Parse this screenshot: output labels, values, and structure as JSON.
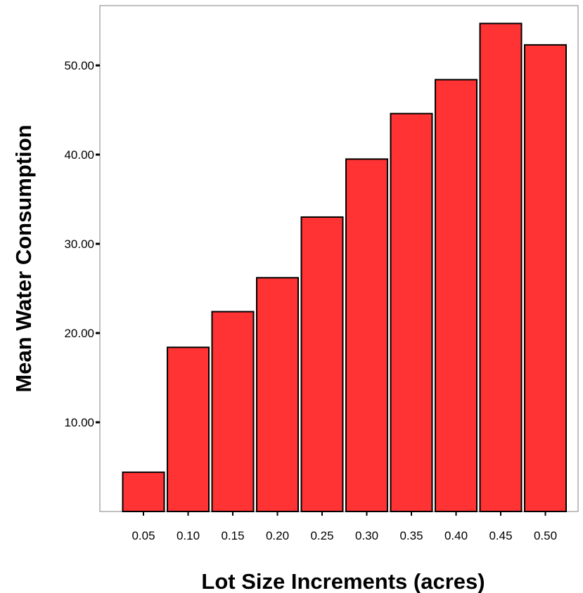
{
  "chart_data": {
    "type": "bar",
    "title": "",
    "xlabel": "Lot Size Increments (acres)",
    "ylabel": "Mean Water Consumption",
    "categories": [
      "0.05",
      "0.10",
      "0.15",
      "0.20",
      "0.25",
      "0.30",
      "0.35",
      "0.40",
      "0.45",
      "0.50"
    ],
    "values": [
      4.4,
      18.4,
      22.4,
      26.2,
      33.0,
      39.5,
      44.6,
      48.4,
      54.7,
      52.3
    ],
    "y_ticks": [
      10,
      20,
      30,
      40,
      50
    ],
    "y_tick_labels": [
      "10.00",
      "20.00",
      "30.00",
      "40.00",
      "50.00"
    ],
    "ylim": [
      0,
      56.7
    ],
    "grid": false,
    "bar_color": "#ff3333",
    "plot_border_color": "#808080"
  }
}
